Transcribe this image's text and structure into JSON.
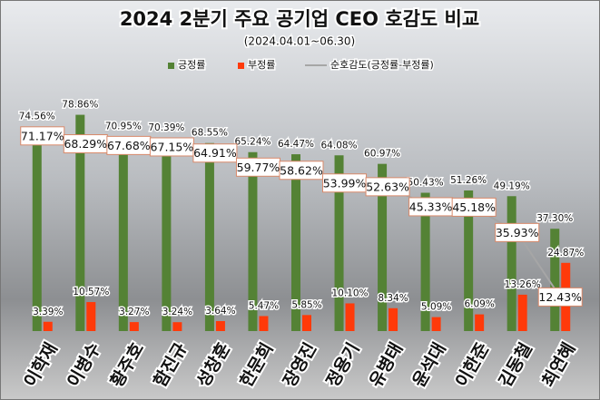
{
  "chart_data": {
    "type": "bar",
    "title": "2024 2분기 주요 공기업 CEO 호감도 비교",
    "subtitle": "(2024.04.01~06.30)",
    "categories": [
      "이학재",
      "이병수",
      "황주호",
      "함진규",
      "성창훈",
      "한문희",
      "장영진",
      "정용기",
      "유병태",
      "윤석대",
      "이한준",
      "김동철",
      "최연혜"
    ],
    "ylim": [
      0,
      85
    ],
    "series": [
      {
        "name": "긍정률",
        "type": "bar",
        "color": "#548235",
        "values": [
          74.56,
          78.86,
          70.95,
          70.39,
          68.55,
          65.24,
          64.47,
          64.08,
          60.97,
          50.43,
          51.26,
          49.19,
          37.3
        ],
        "value_labels": [
          "74.56%",
          "78.86%",
          "70.95%",
          "70.39%",
          "68.55%",
          "65.24%",
          "64.47%",
          "64.08%",
          "60.97%",
          "50.43%",
          "51.26%",
          "49.19%",
          "37.30%"
        ]
      },
      {
        "name": "부정률",
        "type": "bar",
        "color": "#ff3a0a",
        "values": [
          3.39,
          10.57,
          3.27,
          3.24,
          3.64,
          5.47,
          5.85,
          10.1,
          8.34,
          5.09,
          6.09,
          13.26,
          24.87
        ],
        "value_labels": [
          "3.39%",
          "10.57%",
          "3.27%",
          "3.24%",
          "3.64%",
          "5.47%",
          "5.85%",
          "10.10%",
          "8.34%",
          "5.09%",
          "6.09%",
          "13.26%",
          "24.87%"
        ]
      },
      {
        "name": "순호감도(긍정률-부정률)",
        "type": "line",
        "color": "#a6a6a6",
        "values": [
          71.17,
          68.29,
          67.68,
          67.15,
          64.91,
          59.77,
          58.62,
          53.99,
          52.63,
          45.33,
          45.18,
          35.93,
          12.43
        ],
        "value_labels": [
          "71.17%",
          "68.29%",
          "67.68%",
          "67.15%",
          "64.91%",
          "59.77%",
          "58.62%",
          "53.99%",
          "52.63%",
          "45.33%",
          "45.18%",
          "35.93%",
          "12.43%"
        ]
      }
    ]
  }
}
